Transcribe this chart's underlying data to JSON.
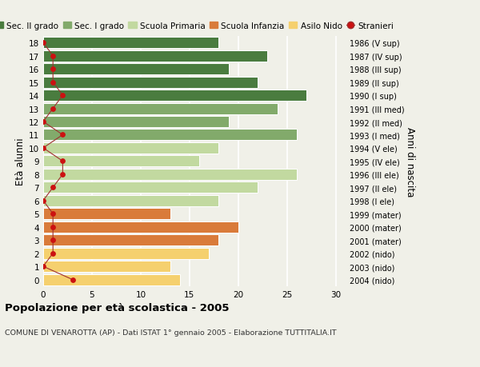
{
  "ages": [
    0,
    1,
    2,
    3,
    4,
    5,
    6,
    7,
    8,
    9,
    10,
    11,
    12,
    13,
    14,
    15,
    16,
    17,
    18
  ],
  "bar_values": [
    14,
    13,
    17,
    18,
    20,
    13,
    18,
    22,
    26,
    16,
    18,
    26,
    19,
    24,
    27,
    22,
    19,
    23,
    18
  ],
  "stranieri": [
    3,
    0,
    1,
    1,
    1,
    1,
    0,
    1,
    2,
    2,
    0,
    2,
    0,
    1,
    2,
    1,
    1,
    1,
    0
  ],
  "right_labels": [
    "2004 (nido)",
    "2003 (nido)",
    "2002 (nido)",
    "2001 (mater)",
    "2000 (mater)",
    "1999 (mater)",
    "1998 (I ele)",
    "1997 (II ele)",
    "1996 (III ele)",
    "1995 (IV ele)",
    "1994 (V ele)",
    "1993 (I med)",
    "1992 (II med)",
    "1991 (III med)",
    "1990 (I sup)",
    "1989 (II sup)",
    "1988 (III sup)",
    "1987 (IV sup)",
    "1986 (V sup)"
  ],
  "colors": {
    "sec2": "#4a7c3f",
    "sec1": "#82aa6b",
    "primaria": "#c2d9a0",
    "infanzia": "#d97b3a",
    "nido": "#f5d06e",
    "stranieri_line": "#a03030",
    "stranieri_dot": "#cc1111",
    "bg_plot": "#f0f0e8",
    "bg_fig": "#f0f0e8",
    "grid": "#ffffff"
  },
  "legend_labels": [
    "Sec. II grado",
    "Sec. I grado",
    "Scuola Primaria",
    "Scuola Infanzia",
    "Asilo Nido",
    "Stranieri"
  ],
  "title_main": "Popolazione per età scolastica - 2005",
  "title_sub": "COMUNE DI VENAROTTA (AP) - Dati ISTAT 1° gennaio 2005 - Elaborazione TUTTITALIA.IT",
  "ylabel_left": "Età alunni",
  "ylabel_right": "Anni di nascita",
  "xlim": [
    0,
    31
  ],
  "ylim": [
    -0.5,
    18.5
  ],
  "xticks": [
    0,
    5,
    10,
    15,
    20,
    25,
    30
  ],
  "figsize": [
    6.0,
    4.6
  ],
  "dpi": 100
}
